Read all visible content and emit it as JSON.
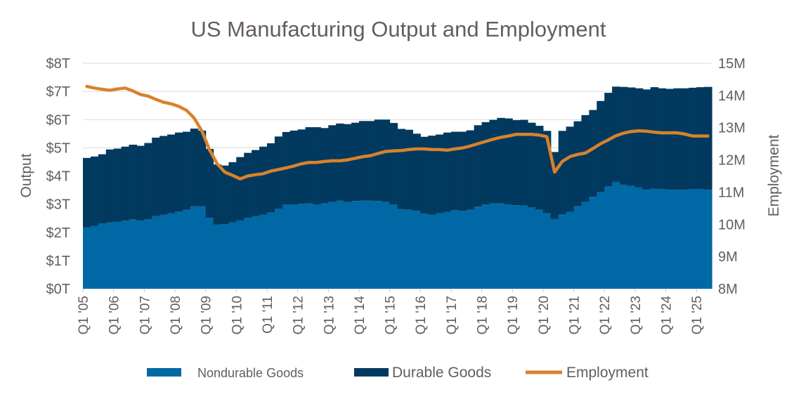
{
  "chart_data": {
    "type": "bar",
    "stacked": true,
    "title": "US Manufacturing Output and Employment",
    "xlabel": "",
    "ylabel": "Output",
    "y2label": "Employment",
    "ylim": [
      0,
      8
    ],
    "y2lim": [
      8,
      15
    ],
    "y_tick_labels": [
      "$0T",
      "$1T",
      "$2T",
      "$3T",
      "$4T",
      "$5T",
      "$6T",
      "$7T",
      "$8T"
    ],
    "y2_tick_labels": [
      "8M",
      "9M",
      "10M",
      "11M",
      "12M",
      "13M",
      "14M",
      "15M"
    ],
    "x_tick_labels": [
      "Q1 '05",
      "Q1 '06",
      "Q1 '07",
      "Q1 '08",
      "Q1 '09",
      "Q1 '10",
      "Q1 '11",
      "Q1 '12",
      "Q1 '13",
      "Q1 '14",
      "Q1 '15",
      "Q1 '16",
      "Q1 '17",
      "Q1 '18",
      "Q1 '19",
      "Q1 '20",
      "Q1 '21",
      "Q1 '22",
      "Q1 '23",
      "Q1 '24",
      "Q1 '25"
    ],
    "categories": [
      "Q1 '05",
      "Q2 '05",
      "Q3 '05",
      "Q4 '05",
      "Q1 '06",
      "Q2 '06",
      "Q3 '06",
      "Q4 '06",
      "Q1 '07",
      "Q2 '07",
      "Q3 '07",
      "Q4 '07",
      "Q1 '08",
      "Q2 '08",
      "Q3 '08",
      "Q4 '08",
      "Q1 '09",
      "Q2 '09",
      "Q3 '09",
      "Q4 '09",
      "Q1 '10",
      "Q2 '10",
      "Q3 '10",
      "Q4 '10",
      "Q1 '11",
      "Q2 '11",
      "Q3 '11",
      "Q4 '11",
      "Q1 '12",
      "Q2 '12",
      "Q3 '12",
      "Q4 '12",
      "Q1 '13",
      "Q2 '13",
      "Q3 '13",
      "Q4 '13",
      "Q1 '14",
      "Q2 '14",
      "Q3 '14",
      "Q4 '14",
      "Q1 '15",
      "Q2 '15",
      "Q3 '15",
      "Q4 '15",
      "Q1 '16",
      "Q2 '16",
      "Q3 '16",
      "Q4 '16",
      "Q1 '17",
      "Q2 '17",
      "Q3 '17",
      "Q4 '17",
      "Q1 '18",
      "Q2 '18",
      "Q3 '18",
      "Q4 '18",
      "Q1 '19",
      "Q2 '19",
      "Q3 '19",
      "Q4 '19",
      "Q1 '20",
      "Q2 '20",
      "Q3 '20",
      "Q4 '20",
      "Q1 '21",
      "Q2 '21",
      "Q3 '21",
      "Q4 '21",
      "Q1 '22",
      "Q2 '22",
      "Q3 '22",
      "Q4 '22",
      "Q1 '23",
      "Q2 '23",
      "Q3 '23",
      "Q4 '23",
      "Q1 '24",
      "Q2 '24",
      "Q3 '24",
      "Q4 '24",
      "Q1 '25",
      "Q2 '25"
    ],
    "series": [
      {
        "name": "Nondurable Goods",
        "type": "bar",
        "axis": "left",
        "unit": "$T",
        "color": "#0068a5",
        "values": [
          2.18,
          2.22,
          2.31,
          2.35,
          2.37,
          2.41,
          2.46,
          2.41,
          2.46,
          2.57,
          2.62,
          2.68,
          2.74,
          2.8,
          2.92,
          2.92,
          2.51,
          2.28,
          2.29,
          2.35,
          2.43,
          2.51,
          2.57,
          2.62,
          2.7,
          2.84,
          2.99,
          2.99,
          3.01,
          3.03,
          2.99,
          3.03,
          3.09,
          3.12,
          3.07,
          3.11,
          3.12,
          3.12,
          3.11,
          3.07,
          2.99,
          2.82,
          2.8,
          2.76,
          2.66,
          2.62,
          2.68,
          2.72,
          2.79,
          2.76,
          2.8,
          2.91,
          2.99,
          3.03,
          3.03,
          2.99,
          2.96,
          2.95,
          2.89,
          2.8,
          2.68,
          2.47,
          2.64,
          2.73,
          2.93,
          3.09,
          3.26,
          3.43,
          3.62,
          3.79,
          3.69,
          3.65,
          3.59,
          3.51,
          3.55,
          3.54,
          3.51,
          3.51,
          3.51,
          3.53,
          3.54,
          3.51
        ]
      },
      {
        "name": "Durable Goods",
        "type": "bar",
        "axis": "left",
        "unit": "$T",
        "color": "#02395f",
        "values": [
          2.46,
          2.47,
          2.46,
          2.59,
          2.6,
          2.63,
          2.65,
          2.66,
          2.71,
          2.79,
          2.8,
          2.79,
          2.8,
          2.77,
          2.76,
          2.69,
          2.45,
          2.13,
          2.08,
          2.14,
          2.24,
          2.31,
          2.35,
          2.42,
          2.46,
          2.56,
          2.57,
          2.62,
          2.64,
          2.7,
          2.74,
          2.67,
          2.71,
          2.74,
          2.77,
          2.78,
          2.83,
          2.83,
          2.89,
          2.93,
          2.89,
          2.85,
          2.84,
          2.74,
          2.73,
          2.81,
          2.79,
          2.82,
          2.78,
          2.81,
          2.82,
          2.89,
          2.92,
          2.96,
          3.03,
          3.05,
          3.02,
          3.04,
          3.0,
          2.98,
          2.92,
          2.38,
          2.96,
          3.02,
          3.01,
          3.07,
          3.08,
          3.23,
          3.33,
          3.38,
          3.47,
          3.49,
          3.52,
          3.56,
          3.6,
          3.57,
          3.58,
          3.6,
          3.6,
          3.6,
          3.61,
          3.65
        ]
      },
      {
        "name": "Employment",
        "type": "line",
        "axis": "right",
        "unit": "M",
        "color": "#d9822b",
        "values": [
          14.28,
          14.23,
          14.19,
          14.16,
          14.2,
          14.23,
          14.14,
          14.03,
          13.98,
          13.88,
          13.79,
          13.74,
          13.66,
          13.54,
          13.3,
          12.9,
          12.32,
          11.88,
          11.62,
          11.52,
          11.41,
          11.5,
          11.54,
          11.57,
          11.65,
          11.7,
          11.75,
          11.81,
          11.88,
          11.92,
          11.92,
          11.95,
          11.97,
          11.97,
          12.0,
          12.05,
          12.1,
          12.13,
          12.2,
          12.26,
          12.28,
          12.29,
          12.32,
          12.34,
          12.34,
          12.32,
          12.32,
          12.3,
          12.34,
          12.37,
          12.43,
          12.5,
          12.57,
          12.64,
          12.7,
          12.74,
          12.79,
          12.79,
          12.79,
          12.77,
          12.72,
          11.62,
          11.95,
          12.1,
          12.17,
          12.21,
          12.35,
          12.5,
          12.62,
          12.75,
          12.83,
          12.88,
          12.9,
          12.89,
          12.86,
          12.84,
          12.84,
          12.84,
          12.8,
          12.74,
          12.74,
          12.74
        ]
      }
    ],
    "grid": true,
    "legend": "bottom",
    "text_color": "#655c5e",
    "grid_color": "#d9d9d9"
  }
}
